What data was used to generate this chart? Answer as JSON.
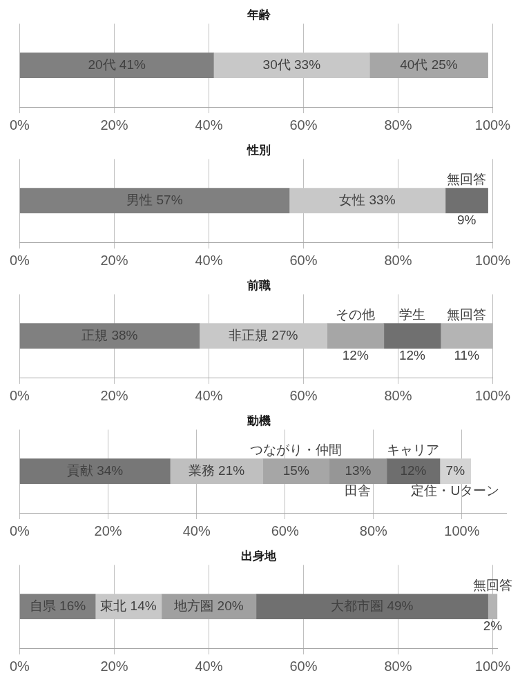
{
  "chart_data": [
    {
      "type": "bar",
      "orientation": "horizontal",
      "stacked": true,
      "title": "年齢",
      "categories": [
        null
      ],
      "series": [
        {
          "name": "20代",
          "color": "#808080",
          "values": [
            41
          ],
          "value_labels": [
            "41%"
          ]
        },
        {
          "name": "30代",
          "color": "#c8c8c8",
          "values": [
            33
          ],
          "value_labels": [
            "33%"
          ]
        },
        {
          "name": "40代",
          "color": "#a6a6a6",
          "values": [
            25
          ],
          "value_labels": [
            "25%"
          ]
        }
      ],
      "xlim": [
        0,
        100
      ],
      "xticks": [
        {
          "value": 0,
          "label": "0%"
        },
        {
          "value": 20,
          "label": "20%"
        },
        {
          "value": 40,
          "label": "40%"
        },
        {
          "value": 60,
          "label": "60%"
        },
        {
          "value": 80,
          "label": "80%"
        },
        {
          "value": 100,
          "label": "100%"
        }
      ],
      "grid": "x"
    },
    {
      "type": "bar",
      "orientation": "horizontal",
      "stacked": true,
      "title": "性別",
      "categories": [
        null
      ],
      "series": [
        {
          "name": "男性",
          "color": "#808080",
          "values": [
            57
          ],
          "value_labels": [
            "57%"
          ]
        },
        {
          "name": "女性",
          "color": "#c8c8c8",
          "values": [
            33
          ],
          "value_labels": [
            "33%"
          ]
        },
        {
          "name": "無回答",
          "color": "#707070",
          "values": [
            9
          ],
          "value_labels": [
            "9%"
          ]
        }
      ],
      "xlim": [
        0,
        100
      ],
      "xticks": [
        {
          "value": 0,
          "label": "0%"
        },
        {
          "value": 20,
          "label": "20%"
        },
        {
          "value": 40,
          "label": "40%"
        },
        {
          "value": 60,
          "label": "60%"
        },
        {
          "value": 80,
          "label": "80%"
        },
        {
          "value": 100,
          "label": "100%"
        }
      ],
      "grid": "x"
    },
    {
      "type": "bar",
      "orientation": "horizontal",
      "stacked": true,
      "title": "前職",
      "categories": [
        null
      ],
      "series": [
        {
          "name": "正規",
          "color": "#808080",
          "values": [
            38
          ],
          "value_labels": [
            "38%"
          ]
        },
        {
          "name": "非正規",
          "color": "#c8c8c8",
          "values": [
            27
          ],
          "value_labels": [
            "27%"
          ]
        },
        {
          "name": "その他",
          "color": "#a6a6a6",
          "values": [
            12
          ],
          "value_labels": [
            "12%"
          ]
        },
        {
          "name": "学生",
          "color": "#707070",
          "values": [
            12
          ],
          "value_labels": [
            "12%"
          ]
        },
        {
          "name": "無回答",
          "color": "#b4b4b4",
          "values": [
            11
          ],
          "value_labels": [
            "11%"
          ]
        }
      ],
      "xlim": [
        0,
        100
      ],
      "xticks": [
        {
          "value": 0,
          "label": "0%"
        },
        {
          "value": 20,
          "label": "20%"
        },
        {
          "value": 40,
          "label": "40%"
        },
        {
          "value": 60,
          "label": "60%"
        },
        {
          "value": 80,
          "label": "80%"
        },
        {
          "value": 100,
          "label": "100%"
        }
      ],
      "grid": "x"
    },
    {
      "type": "bar",
      "orientation": "horizontal",
      "stacked": true,
      "title": "動機",
      "categories": [
        null
      ],
      "series": [
        {
          "name": "貢献",
          "color": "#777777",
          "values": [
            34
          ],
          "value_labels": [
            "34%"
          ]
        },
        {
          "name": "業務",
          "color": "#bfbfbf",
          "values": [
            21
          ],
          "value_labels": [
            "21%"
          ]
        },
        {
          "name": "つながり・仲間",
          "color": "#a6a6a6",
          "values": [
            15
          ],
          "value_labels": [
            "15%"
          ]
        },
        {
          "name": "田舎",
          "color": "#969696",
          "values": [
            13
          ],
          "value_labels": [
            "13%"
          ]
        },
        {
          "name": "キャリア",
          "color": "#6e6e6e",
          "values": [
            12
          ],
          "value_labels": [
            "12%"
          ]
        },
        {
          "name": "定住・Uターン",
          "color": "#d4d4d4",
          "values": [
            7
          ],
          "value_labels": [
            "7%"
          ]
        }
      ],
      "xlim": [
        0,
        110
      ],
      "xticks": [
        {
          "value": 0,
          "label": "0%"
        },
        {
          "value": 20,
          "label": "20%"
        },
        {
          "value": 40,
          "label": "40%"
        },
        {
          "value": 60,
          "label": "60%"
        },
        {
          "value": 80,
          "label": "80%"
        },
        {
          "value": 100,
          "label": "100%"
        }
      ],
      "grid": "x"
    },
    {
      "type": "bar",
      "orientation": "horizontal",
      "stacked": true,
      "title": "出身地",
      "categories": [
        null
      ],
      "series": [
        {
          "name": "自県",
          "color": "#808080",
          "values": [
            16
          ],
          "value_labels": [
            "16%"
          ]
        },
        {
          "name": "東北",
          "color": "#c8c8c8",
          "values": [
            14
          ],
          "value_labels": [
            "14%"
          ]
        },
        {
          "name": "地方圏",
          "color": "#a0a0a0",
          "values": [
            20
          ],
          "value_labels": [
            "20%"
          ]
        },
        {
          "name": "大都市圏",
          "color": "#707070",
          "values": [
            49
          ],
          "value_labels": [
            "49%"
          ]
        },
        {
          "name": "無回答",
          "color": "#b4b4b4",
          "values": [
            2
          ],
          "value_labels": [
            "2%"
          ]
        }
      ],
      "xlim": [
        0,
        101
      ],
      "xticks": [
        {
          "value": 0,
          "label": "0%"
        },
        {
          "value": 20,
          "label": "20%"
        },
        {
          "value": 40,
          "label": "40%"
        },
        {
          "value": 60,
          "label": "60%"
        },
        {
          "value": 80,
          "label": "80%"
        },
        {
          "value": 100,
          "label": "100%"
        }
      ],
      "grid": "x"
    }
  ]
}
